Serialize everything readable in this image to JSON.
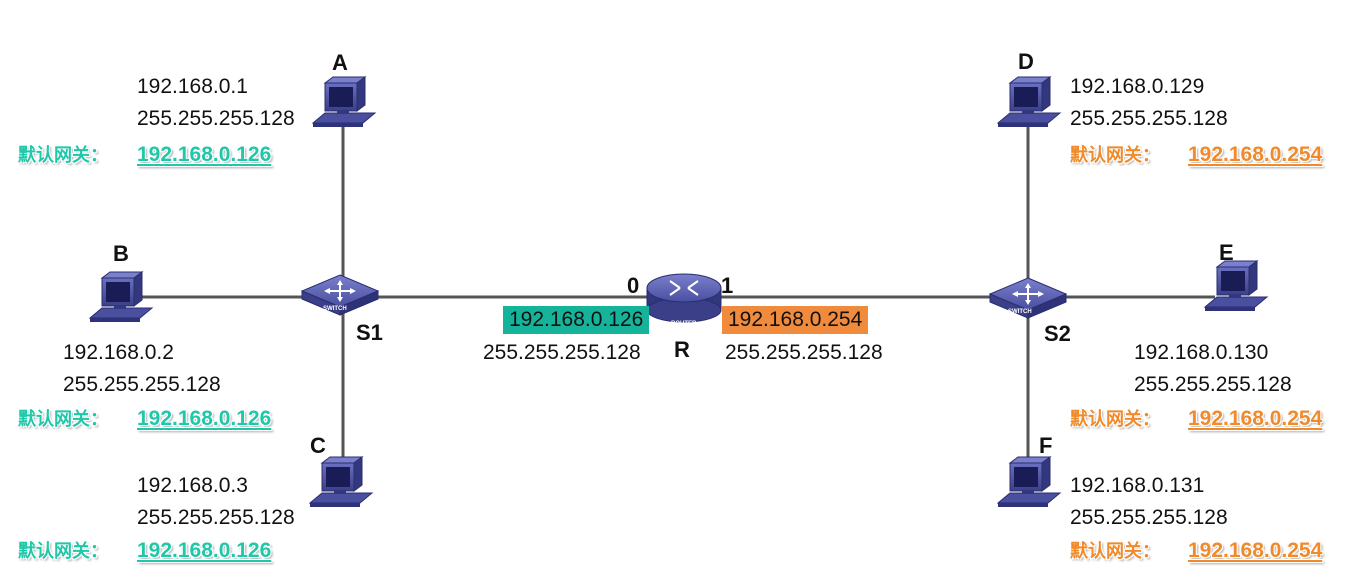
{
  "colors": {
    "left_gateway": "#1ec8a8",
    "right_gateway": "#f08a2a",
    "left_box": "#16b39b",
    "right_box": "#f08a3c",
    "device": "#4a4fa0",
    "link": "#555555"
  },
  "hosts": {
    "A": {
      "label": "A",
      "ip": "192.168.0.1",
      "mask": "255.255.255.128",
      "gw_label": "默认网关：",
      "gw": "192.168.0.126"
    },
    "B": {
      "label": "B",
      "ip": "192.168.0.2",
      "mask": "255.255.255.128",
      "gw_label": "默认网关：",
      "gw": "192.168.0.126"
    },
    "C": {
      "label": "C",
      "ip": "192.168.0.3",
      "mask": "255.255.255.128",
      "gw_label": "默认网关：",
      "gw": "192.168.0.126"
    },
    "D": {
      "label": "D",
      "ip": "192.168.0.129",
      "mask": "255.255.255.128",
      "gw_label": "默认网关：",
      "gw": "192.168.0.254"
    },
    "E": {
      "label": "E",
      "ip": "192.168.0.130",
      "mask": "255.255.255.128",
      "gw_label": "默认网关：",
      "gw": "192.168.0.254"
    },
    "F": {
      "label": "F",
      "ip": "192.168.0.131",
      "mask": "255.255.255.128",
      "gw_label": "默认网关：",
      "gw": "192.168.0.254"
    }
  },
  "switches": {
    "S1": {
      "label": "S1",
      "icon_text": "SWITCH"
    },
    "S2": {
      "label": "S2",
      "icon_text": "SWITCH"
    }
  },
  "router": {
    "label": "R",
    "icon_text": "ROUTER",
    "port0": {
      "label": "0",
      "ip": "192.168.0.126",
      "mask": "255.255.255.128"
    },
    "port1": {
      "label": "1",
      "ip": "192.168.0.254",
      "mask": "255.255.255.128"
    }
  }
}
